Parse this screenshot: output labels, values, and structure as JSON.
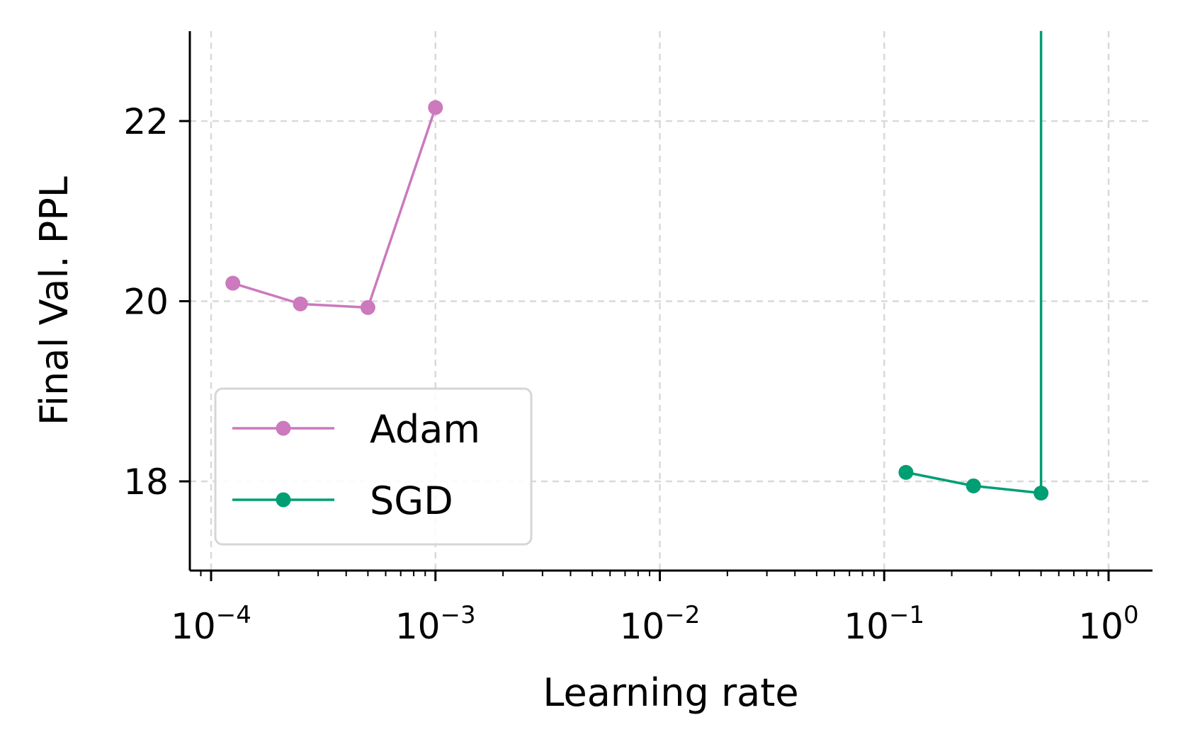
{
  "chart_data": {
    "type": "line",
    "title": "",
    "xlabel": "Learning rate",
    "ylabel": "Final Val. PPL",
    "xscale": "log",
    "xlim": [
      8e-05,
      1.6
    ],
    "ylim": [
      17.0,
      23.0
    ],
    "grid": true,
    "legend_position": "lower-left",
    "x_ticks": [
      {
        "value": 0.0001,
        "base": "10",
        "exp": "−4"
      },
      {
        "value": 0.001,
        "base": "10",
        "exp": "−3"
      },
      {
        "value": 0.01,
        "base": "10",
        "exp": "−2"
      },
      {
        "value": 0.1,
        "base": "10",
        "exp": "−1"
      },
      {
        "value": 1,
        "base": "10",
        "exp": "0"
      }
    ],
    "y_ticks": [
      {
        "value": 18,
        "label": "18"
      },
      {
        "value": 20,
        "label": "20"
      },
      {
        "value": 22,
        "label": "22"
      }
    ],
    "series": [
      {
        "name": "Adam",
        "color": "#cc79bd",
        "x": [
          0.000125,
          0.00025,
          0.0005,
          0.001
        ],
        "y": [
          20.2,
          19.97,
          19.93,
          22.15
        ]
      },
      {
        "name": "SGD",
        "color": "#009e73",
        "x": [
          0.125,
          0.25,
          0.5
        ],
        "y": [
          18.1,
          17.95,
          17.87
        ],
        "divergence_line": {
          "x": 0.5,
          "from_y": 17.87,
          "to_y": 23.0
        }
      }
    ]
  }
}
